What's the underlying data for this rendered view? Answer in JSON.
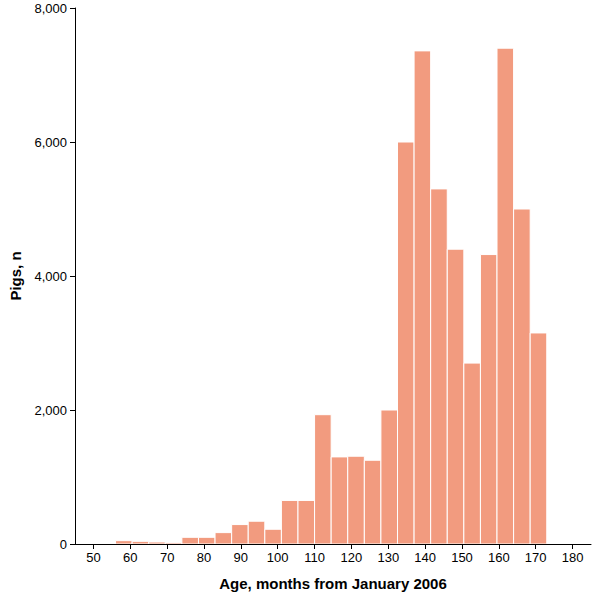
{
  "chart_data": {
    "type": "histogram",
    "x_label": "Age, months from January 2006",
    "y_label": "Pigs, n",
    "bins": [
      56,
      60.5,
      65,
      69.5,
      74,
      78.5,
      83,
      87.5,
      92,
      96.5,
      101,
      105.5,
      110,
      114.5,
      119,
      123.5,
      128,
      132.5,
      137,
      141.5,
      146,
      150.5,
      155,
      159.5,
      164,
      168.5,
      173
    ],
    "values": [
      50,
      40,
      30,
      20,
      100,
      100,
      170,
      290,
      340,
      220,
      650,
      650,
      1930,
      1300,
      1310,
      1250,
      2000,
      6000,
      7360,
      5300,
      4400,
      2700,
      4320,
      7400,
      5000,
      3150
    ],
    "color": "#f29b7f",
    "xlim": [
      45,
      185
    ],
    "xticks": [
      50,
      60,
      70,
      80,
      90,
      100,
      110,
      120,
      130,
      140,
      150,
      160,
      170,
      180
    ],
    "ylim": [
      0,
      8000
    ],
    "yticks": [
      0,
      2000,
      4000,
      6000,
      8000
    ],
    "grid": false
  }
}
